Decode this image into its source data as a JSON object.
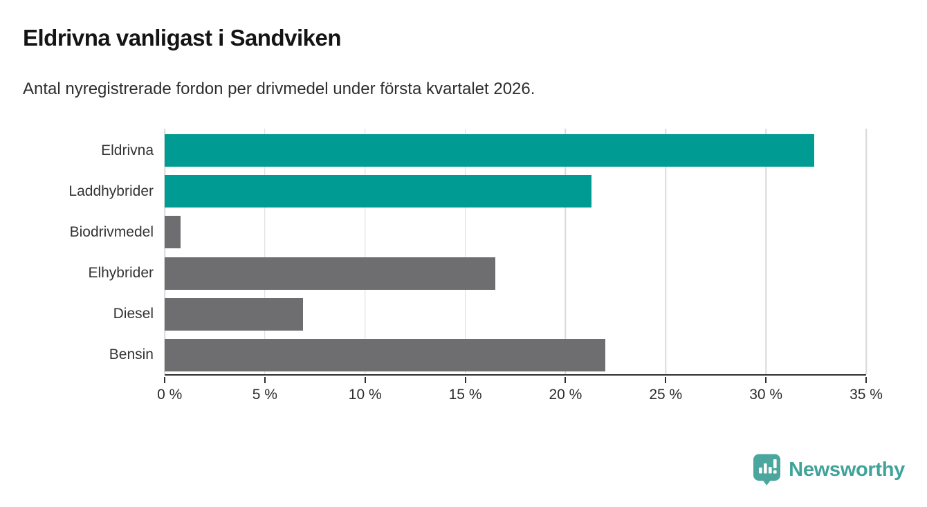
{
  "header": {
    "title": "Eldrivna vanligast i Sandviken",
    "subtitle": "Antal nyregistrerade fordon per drivmedel under första kvartalet 2026."
  },
  "chart_data": {
    "type": "bar",
    "orientation": "horizontal",
    "title": "Eldrivna vanligast i Sandviken",
    "subtitle": "Antal nyregistrerade fordon per drivmedel under första kvartalet 2026.",
    "categories": [
      "Eldrivna",
      "Laddhybrider",
      "Biodrivmedel",
      "Elhybrider",
      "Diesel",
      "Bensin"
    ],
    "values": [
      32.4,
      21.3,
      0.8,
      16.5,
      6.9,
      22.0
    ],
    "unit": "%",
    "bar_colors": [
      "#009b92",
      "#009b92",
      "#6e6e71",
      "#6e6e71",
      "#6e6e71",
      "#6e6e71"
    ],
    "highlight_color": "#009b92",
    "default_color": "#6e6e71",
    "xlabel": "",
    "ylabel": "",
    "xlim": [
      0,
      35
    ],
    "x_ticks": [
      0,
      5,
      10,
      15,
      20,
      25,
      30,
      35
    ],
    "x_tick_labels": [
      "0 %",
      "5 %",
      "10 %",
      "15 %",
      "20 %",
      "25 %",
      "30 %",
      "35 %"
    ],
    "grid": true,
    "gridline_color": "#d9d9d9",
    "axis_color": "#2f2f2f",
    "legend": false
  },
  "branding": {
    "wordmark": "Newsworthy",
    "logo_icon": "newsworthy-pin-bar-chart-icon",
    "wordmark_color": "#3fa39a",
    "icon_color": "#4ba79e"
  }
}
